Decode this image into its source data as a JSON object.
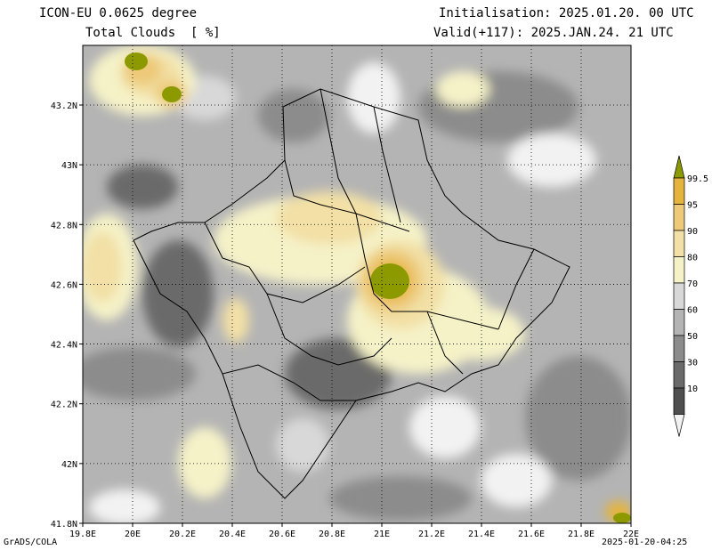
{
  "header": {
    "model": "ICON-EU 0.0625 degree",
    "variable": "Total Clouds  [ %]",
    "initialisation": "Initialisation: 2025.01.20. 00 UTC",
    "valid": "Valid(+117): 2025.JAN.24. 21 UTC"
  },
  "axes": {
    "x_ticks": [
      "19.8E",
      "20E",
      "20.2E",
      "20.4E",
      "20.6E",
      "20.8E",
      "21E",
      "21.2E",
      "21.4E",
      "21.6E",
      "21.8E",
      "22E"
    ],
    "y_ticks": [
      "43.2N",
      "43N",
      "42.8N",
      "42.6N",
      "42.4N",
      "42.2N",
      "42N",
      "41.8N"
    ]
  },
  "colorbar": {
    "levels": [
      "99.5",
      "95",
      "90",
      "80",
      "70",
      "60",
      "50",
      "30",
      "10"
    ],
    "colors": [
      "#8c9a00",
      "#e5b43c",
      "#edc978",
      "#f2e0a6",
      "#f5f2c8",
      "#d8d8d8",
      "#b4b4b4",
      "#8c8c8c",
      "#6a6a6a",
      "#4e4e4e",
      "#f2f2f2"
    ]
  },
  "footer": {
    "left": "GrADS/COLA",
    "right": "2025-01-20-04:25"
  }
}
